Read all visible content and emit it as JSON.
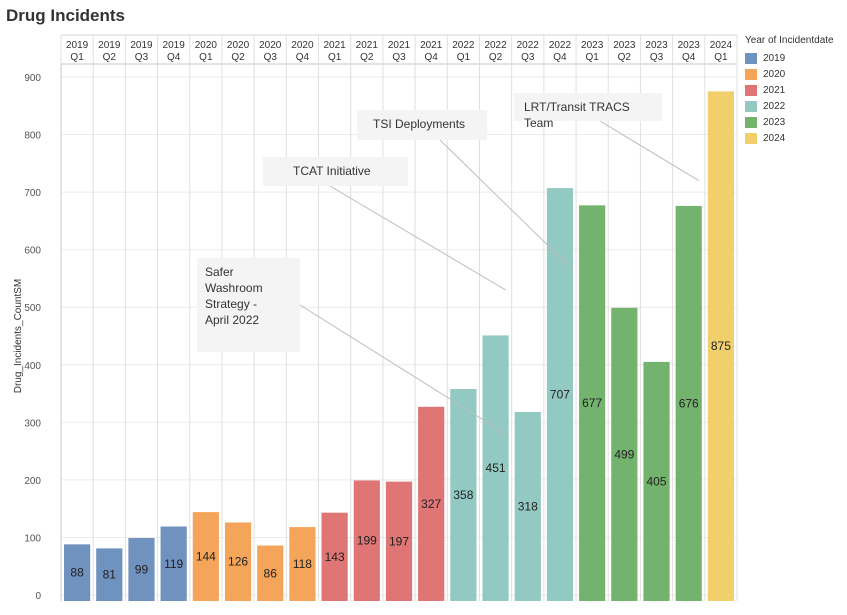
{
  "title": "Drug Incidents",
  "chart_data": {
    "type": "bar",
    "title": "Drug Incidents",
    "ylabel": "Drug_Incidents_CountSM",
    "xlabel": "",
    "ylim": [
      0,
      900
    ],
    "yticks": [
      0,
      100,
      200,
      300,
      400,
      500,
      600,
      700,
      800,
      900
    ],
    "grid": true,
    "legend_title": "Year of Incidentdate",
    "legend_position": "right",
    "categories": [
      {
        "year": "2019",
        "quarter": "Q1"
      },
      {
        "year": "2019",
        "quarter": "Q2"
      },
      {
        "year": "2019",
        "quarter": "Q3"
      },
      {
        "year": "2019",
        "quarter": "Q4"
      },
      {
        "year": "2020",
        "quarter": "Q1"
      },
      {
        "year": "2020",
        "quarter": "Q2"
      },
      {
        "year": "2020",
        "quarter": "Q3"
      },
      {
        "year": "2020",
        "quarter": "Q4"
      },
      {
        "year": "2021",
        "quarter": "Q1"
      },
      {
        "year": "2021",
        "quarter": "Q2"
      },
      {
        "year": "2021",
        "quarter": "Q3"
      },
      {
        "year": "2021",
        "quarter": "Q4"
      },
      {
        "year": "2022",
        "quarter": "Q1"
      },
      {
        "year": "2022",
        "quarter": "Q2"
      },
      {
        "year": "2022",
        "quarter": "Q3"
      },
      {
        "year": "2022",
        "quarter": "Q4"
      },
      {
        "year": "2023",
        "quarter": "Q1"
      },
      {
        "year": "2023",
        "quarter": "Q2"
      },
      {
        "year": "2023",
        "quarter": "Q3"
      },
      {
        "year": "2023",
        "quarter": "Q4"
      },
      {
        "year": "2024",
        "quarter": "Q1"
      }
    ],
    "values": [
      88,
      81,
      99,
      119,
      144,
      126,
      86,
      118,
      143,
      199,
      197,
      327,
      358,
      451,
      318,
      707,
      677,
      499,
      405,
      676,
      875
    ],
    "value_labels": [
      "88",
      "81",
      "99",
      "119",
      "144",
      "126",
      "86",
      "118",
      "143",
      "199",
      "197",
      "327",
      "358",
      "451",
      "318",
      "707",
      "677",
      "499",
      "405",
      "676",
      "875"
    ],
    "legend": [
      {
        "name": "2019",
        "color": "#7092be"
      },
      {
        "name": "2020",
        "color": "#f5a559"
      },
      {
        "name": "2021",
        "color": "#e07575"
      },
      {
        "name": "2022",
        "color": "#93c9c3"
      },
      {
        "name": "2023",
        "color": "#74b36e"
      },
      {
        "name": "2024",
        "color": "#f1d06c"
      }
    ],
    "annotations": [
      {
        "text": [
          "Safer",
          "Washroom",
          "Strategy -",
          "April 2022"
        ],
        "target_index": 13,
        "target_value": 280
      },
      {
        "text": [
          "TCAT Initiative"
        ],
        "target_index": 13,
        "target_value": 530
      },
      {
        "text": [
          "TSI Deployments"
        ],
        "target_index": 15,
        "target_value": 570
      },
      {
        "text": [
          "LRT/Transit TRACS Team"
        ],
        "target_index": 19,
        "target_value": 720
      }
    ]
  }
}
